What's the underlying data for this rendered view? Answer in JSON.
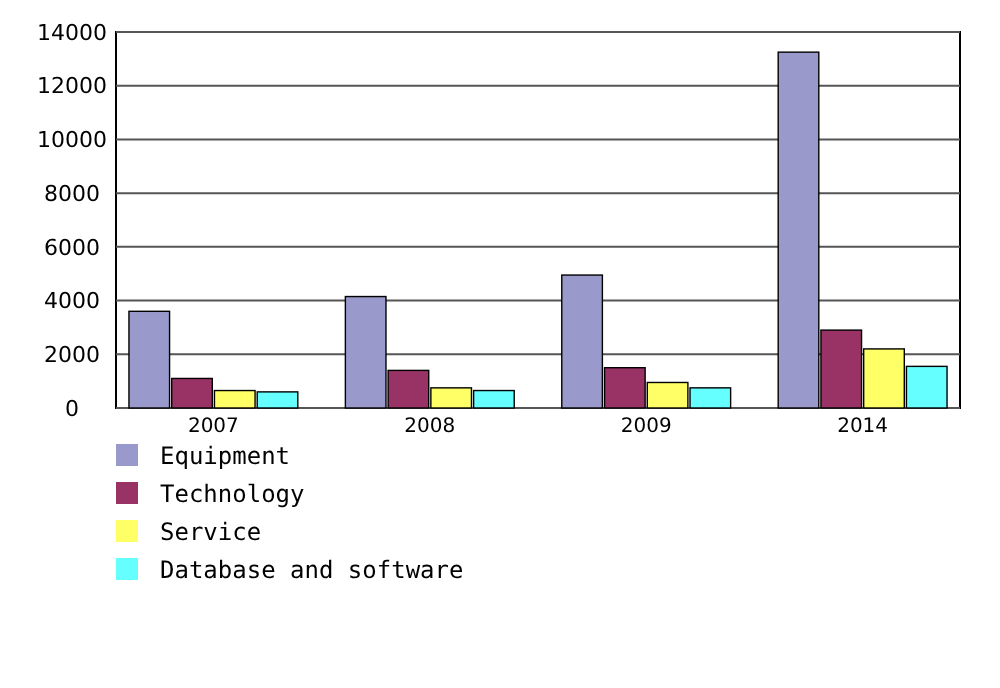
{
  "chart_data": {
    "type": "bar",
    "categories": [
      "2007",
      "2008",
      "2009",
      "2014"
    ],
    "series": [
      {
        "name": "Equipment",
        "color": "#9999cc",
        "values": [
          3600,
          4150,
          4950,
          13250
        ]
      },
      {
        "name": "Technology",
        "color": "#993366",
        "values": [
          1100,
          1400,
          1500,
          2900
        ]
      },
      {
        "name": "Service",
        "color": "#ffff66",
        "values": [
          650,
          750,
          950,
          2200
        ]
      },
      {
        "name": "Database and software",
        "color": "#66ffff",
        "values": [
          600,
          650,
          750,
          1550
        ]
      }
    ],
    "ylim": [
      0,
      14000
    ],
    "yticks": [
      0,
      2000,
      4000,
      6000,
      8000,
      10000,
      12000,
      14000
    ],
    "grid": "y",
    "legend": "bottom left"
  }
}
